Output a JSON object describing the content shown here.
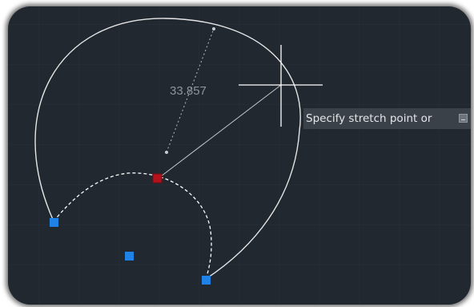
{
  "viewport": {
    "background": "#212830",
    "grid_color": "#2b343e"
  },
  "dimension": {
    "value": "33.857",
    "color": "#8d949c"
  },
  "tooltip": {
    "text": "Specify stretch point or",
    "icon": "input-option-icon"
  },
  "grips": {
    "selected_color": "#b3121c",
    "unselected_color": "#1e82e6"
  },
  "geometry_colors": {
    "arc": "#e6e6e6",
    "preview": "#ffffff",
    "cursor": "#ffffff"
  }
}
